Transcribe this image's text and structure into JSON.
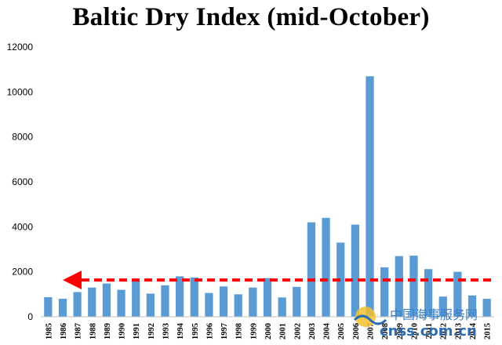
{
  "title": "Baltic Dry Index (mid-October)",
  "colors": {
    "bar": "#5b9bd5",
    "reference_line": "#ff0000",
    "axis": "#bfbfbf"
  },
  "watermark": {
    "text_cn": "中国海事服务网",
    "text_en": "cnss.com.cn"
  },
  "chart_data": {
    "type": "bar",
    "title": "Baltic Dry Index (mid-October)",
    "xlabel": "",
    "ylabel": "",
    "ylim": [
      0,
      12000
    ],
    "yticks": [
      0,
      2000,
      4000,
      6000,
      8000,
      10000,
      12000
    ],
    "grid": false,
    "categories": [
      "1985",
      "1986",
      "1987",
      "1988",
      "1989",
      "1990",
      "1991",
      "1992",
      "1993",
      "1994",
      "1995",
      "1996",
      "1997",
      "1998",
      "1999",
      "2000",
      "2001",
      "2002",
      "2003",
      "2004",
      "2005",
      "2006",
      "2007",
      "2008",
      "2009",
      "2010",
      "2011",
      "2012",
      "2013",
      "2014",
      "2015"
    ],
    "values": [
      870,
      800,
      1100,
      1300,
      1480,
      1200,
      1600,
      1030,
      1400,
      1800,
      1750,
      1060,
      1350,
      1000,
      1300,
      1720,
      860,
      1330,
      4200,
      4400,
      3300,
      4100,
      10700,
      2200,
      2700,
      2720,
      2120,
      900,
      2000,
      950,
      800
    ],
    "reference_line": {
      "value": 800,
      "style": "dashed",
      "arrow": "left"
    }
  }
}
